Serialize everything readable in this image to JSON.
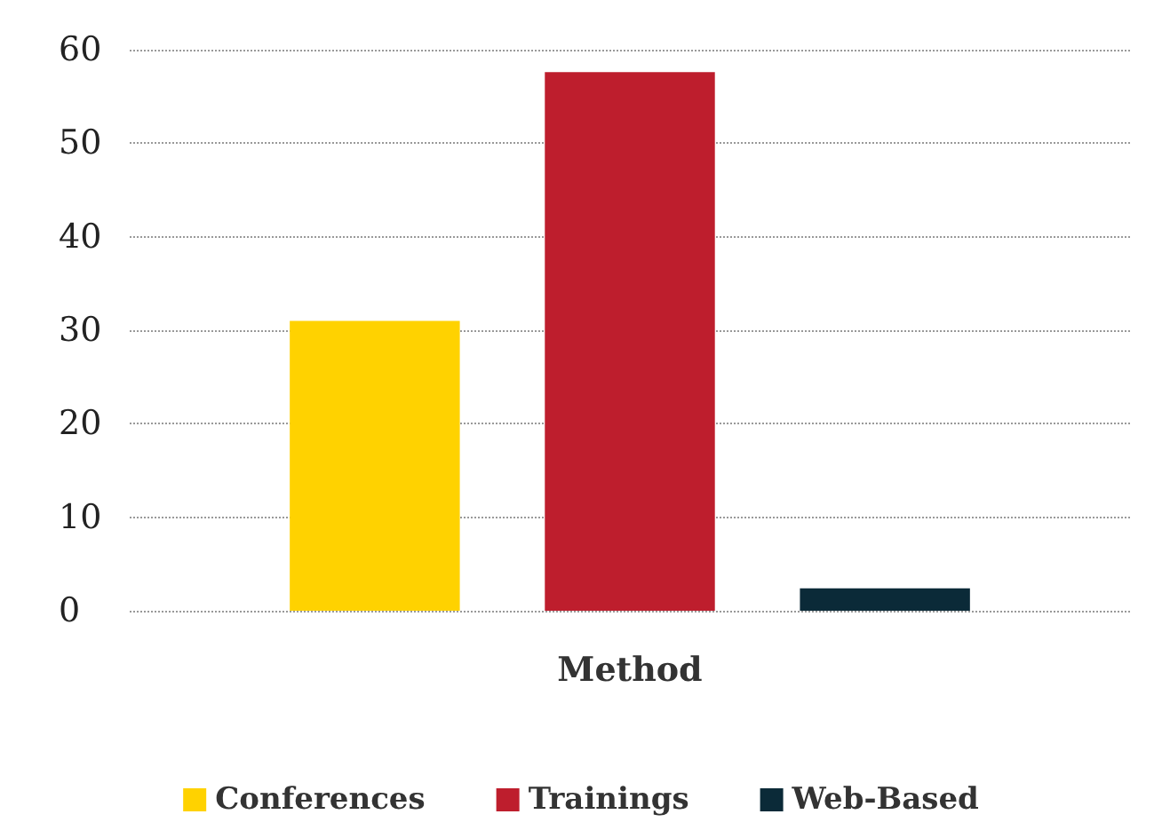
{
  "chart_data": {
    "type": "bar",
    "categories": [
      "Method"
    ],
    "series": [
      {
        "name": "Conferences",
        "color": "#ffd200",
        "values": [
          31
        ]
      },
      {
        "name": "Trainings",
        "color": "#be1e2d",
        "values": [
          57.6
        ]
      },
      {
        "name": "Web-Based",
        "color": "#0b2a38",
        "values": [
          2.4
        ]
      }
    ],
    "ylim": [
      0,
      60
    ],
    "yticks": [
      0,
      10,
      20,
      30,
      40,
      50,
      60
    ],
    "grid": "y",
    "legend": "bottom"
  }
}
